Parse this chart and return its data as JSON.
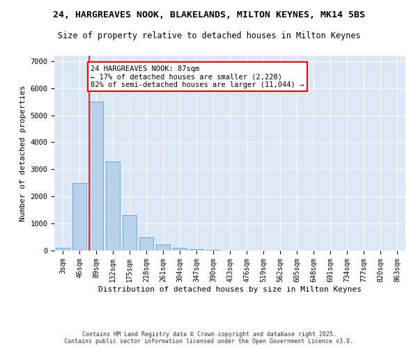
{
  "title_line1": "24, HARGREAVES NOOK, BLAKELANDS, MILTON KEYNES, MK14 5BS",
  "title_line2": "Size of property relative to detached houses in Milton Keynes",
  "xlabel": "Distribution of detached houses by size in Milton Keynes",
  "ylabel": "Number of detached properties",
  "categories": [
    "3sqm",
    "46sqm",
    "89sqm",
    "132sqm",
    "175sqm",
    "218sqm",
    "261sqm",
    "304sqm",
    "347sqm",
    "390sqm",
    "433sqm",
    "476sqm",
    "519sqm",
    "562sqm",
    "605sqm",
    "648sqm",
    "691sqm",
    "734sqm",
    "777sqm",
    "820sqm",
    "863sqm"
  ],
  "values": [
    100,
    2500,
    5500,
    3300,
    1300,
    480,
    230,
    100,
    60,
    20,
    0,
    0,
    0,
    0,
    0,
    0,
    0,
    0,
    0,
    0,
    0
  ],
  "bar_color": "#b8d0e8",
  "bar_edge_color": "#6a9fc0",
  "annotation_box_text": "24 HARGREAVES NOOK: 87sqm\n← 17% of detached houses are smaller (2,228)\n82% of semi-detached houses are larger (11,044) →",
  "vline_x_index": 2,
  "vline_color": "red",
  "ylim": [
    0,
    7200
  ],
  "yticks": [
    0,
    1000,
    2000,
    3000,
    4000,
    5000,
    6000,
    7000
  ],
  "background_color": "#dce8f5",
  "grid_color": "white",
  "footer_text": "Contains HM Land Registry data © Crown copyright and database right 2025.\nContains public sector information licensed under the Open Government Licence v3.0.",
  "title_fontsize": 9.5,
  "subtitle_fontsize": 8.5,
  "xlabel_fontsize": 8,
  "ylabel_fontsize": 8,
  "tick_fontsize": 7,
  "annotation_fontsize": 7.5,
  "footer_fontsize": 6
}
